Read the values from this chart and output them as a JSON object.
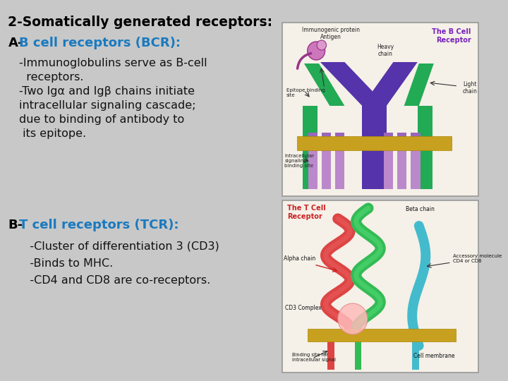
{
  "bg_color": "#c8c8c8",
  "title": "2-Somatically generated receptors:",
  "title_color": "#000000",
  "title_fontsize": 13.5,
  "section_A_label": "A-",
  "section_A_rest": "B cell receptors (BCR):",
  "section_A_color_label": "#000000",
  "section_A_color_rest": "#1a7abf",
  "section_A_fontsize": 13,
  "bcr_lines": [
    "-Immunoglobulins serve as B-cell",
    "  receptors.",
    "-Two Igα and Igβ chains initiate",
    "intracellular signaling cascade;",
    "due to binding of antibody to",
    " its epitope."
  ],
  "bcr_fontsize": 11.5,
  "bcr_color": "#111111",
  "section_B_label": "B-",
  "section_B_rest": "T cell receptors (TCR):",
  "section_B_color_label": "#000000",
  "section_B_color_rest": "#1a7abf",
  "section_B_fontsize": 13,
  "tcr_lines": [
    "   -Cluster of differentiation 3 (CD3)",
    "   -Binds to MHC.",
    "   -CD4 and CD8 are co-receptors."
  ],
  "tcr_fontsize": 11.5,
  "tcr_color": "#111111",
  "panel_bg": "#f5f0e8",
  "panel_border": "#aaaaaa",
  "bcr_purple": "#5533aa",
  "bcr_green": "#22aa55",
  "bcr_lavender": "#bb88cc",
  "bcr_gold": "#c8a020",
  "bcr_antigen_purple": "#993388",
  "bcr_antigen_pink": "#cc88bb",
  "tcr_red": "#dd4444",
  "tcr_green": "#33bb55",
  "tcr_teal": "#44bbcc",
  "tcr_pink": "#ffaaaa",
  "tcr_gold": "#c8a020",
  "tcr_gray": "#888888"
}
